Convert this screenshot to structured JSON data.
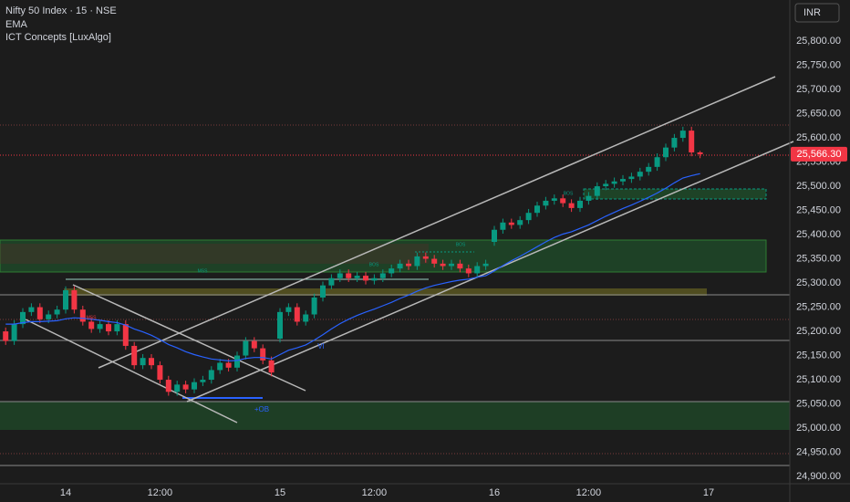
{
  "chart_data": {
    "type": "candlestick",
    "title": "Nifty 50 Index · 15 · NSE",
    "indicators": [
      "EMA",
      "ICT Concepts [LuxAlgo]"
    ],
    "currency": "INR",
    "up_color": "#089981",
    "down_color": "#f23645",
    "grid": false,
    "categories": [
      null,
      null,
      null,
      null,
      null,
      null,
      null,
      "14",
      null,
      null,
      null,
      null,
      null,
      null,
      null,
      null,
      null,
      null,
      "12:00",
      null,
      null,
      null,
      null,
      null,
      null,
      null,
      null,
      null,
      null,
      null,
      null,
      null,
      "15",
      null,
      null,
      null,
      null,
      null,
      null,
      null,
      null,
      null,
      null,
      "12:00",
      null,
      null,
      null,
      null,
      null,
      null,
      null,
      null,
      null,
      null,
      null,
      null,
      null,
      "16",
      null,
      null,
      null,
      null,
      null,
      null,
      null,
      null,
      null,
      null,
      "12:00",
      null,
      null,
      null,
      null,
      null,
      null,
      null,
      null,
      null,
      null,
      null,
      null,
      null,
      "17"
    ],
    "open": [
      25200,
      25180,
      25215,
      25240,
      25250,
      25225,
      25235,
      25245,
      25285,
      25245,
      25220,
      25205,
      25215,
      25200,
      25215,
      25170,
      25130,
      25145,
      25130,
      25100,
      25075,
      25090,
      25080,
      25095,
      25100,
      25120,
      25135,
      25125,
      25150,
      25180,
      25165,
      25140,
      25185,
      25240,
      25250,
      25220,
      25235,
      25270,
      25295,
      25310,
      25320,
      25310,
      25315,
      25305,
      25310,
      25320,
      25330,
      25340,
      25335,
      25355,
      25350,
      25340,
      25335,
      25340,
      25330,
      25320,
      25335,
      25385,
      25410,
      25425,
      25420,
      25430,
      25445,
      25460,
      25470,
      25475,
      25465,
      25455,
      25470,
      25480,
      25500,
      25505,
      25510,
      25515,
      25520,
      25530,
      25540,
      25560,
      25580,
      25600,
      25615,
      25570,
      null
    ],
    "high": [
      25208,
      25223,
      25248,
      25258,
      25258,
      25243,
      25253,
      25293,
      25293,
      25253,
      25228,
      25223,
      25223,
      25223,
      25223,
      25178,
      25153,
      25153,
      25138,
      25108,
      25098,
      25098,
      25103,
      25108,
      25128,
      25143,
      25143,
      25158,
      25188,
      25188,
      25173,
      25148,
      25248,
      25258,
      25258,
      25243,
      25278,
      25303,
      25318,
      25328,
      25328,
      25323,
      25323,
      25318,
      25328,
      25338,
      25348,
      25348,
      25363,
      25363,
      25358,
      25348,
      25348,
      25348,
      25338,
      25343,
      25348,
      25418,
      25433,
      25433,
      25438,
      25453,
      25468,
      25478,
      25483,
      25483,
      25473,
      25478,
      25488,
      25508,
      25513,
      25518,
      25523,
      25528,
      25538,
      25548,
      25568,
      25588,
      25608,
      25623,
      25623,
      25573,
      null
    ],
    "low": [
      25172,
      25172,
      25207,
      25232,
      25217,
      25217,
      25227,
      25237,
      25237,
      25212,
      25197,
      25197,
      25192,
      25192,
      25162,
      25122,
      25122,
      25122,
      25092,
      25067,
      25067,
      25072,
      25072,
      25087,
      25092,
      25112,
      25117,
      25117,
      25142,
      25157,
      25132,
      25107,
      25177,
      25232,
      25212,
      25212,
      25227,
      25262,
      25287,
      25302,
      25302,
      25302,
      25297,
      25297,
      25302,
      25312,
      25322,
      25327,
      25327,
      25342,
      25332,
      25327,
      25327,
      25322,
      25312,
      25312,
      25327,
      25377,
      25402,
      25412,
      25412,
      25422,
      25437,
      25452,
      25462,
      25457,
      25447,
      25447,
      25462,
      25472,
      25492,
      25497,
      25502,
      25507,
      25512,
      25522,
      25532,
      25552,
      25572,
      25592,
      25562,
      25558,
      null
    ],
    "close": [
      25180,
      25215,
      25240,
      25250,
      25225,
      25235,
      25245,
      25285,
      25245,
      25220,
      25205,
      25215,
      25200,
      25215,
      25170,
      25130,
      25145,
      25130,
      25100,
      25075,
      25090,
      25080,
      25095,
      25100,
      25120,
      25135,
      25125,
      25150,
      25180,
      25165,
      25140,
      25115,
      25240,
      25250,
      25220,
      25235,
      25270,
      25295,
      25310,
      25320,
      25310,
      25315,
      25305,
      25310,
      25320,
      25330,
      25340,
      25335,
      25355,
      25350,
      25340,
      25335,
      25340,
      25330,
      25320,
      25335,
      25340,
      25410,
      25425,
      25420,
      25430,
      25445,
      25460,
      25470,
      25475,
      25465,
      25455,
      25470,
      25480,
      25500,
      25505,
      25510,
      25515,
      25520,
      25530,
      25540,
      25560,
      25580,
      25600,
      25615,
      25570,
      25566.3,
      null
    ],
    "series": [
      {
        "name": "EMA",
        "color": "#2962ff",
        "values": [
          25215,
          25215,
          25218,
          25220,
          25220,
          25221,
          25222,
          25226,
          25228,
          25227,
          25225,
          25223,
          25220,
          25218,
          25213,
          25205,
          25199,
          25192,
          25183,
          25173,
          25166,
          25158,
          25152,
          25147,
          25143,
          25141,
          25139,
          25140,
          25144,
          25146,
          25146,
          25143,
          25152,
          25161,
          25166,
          25172,
          25182,
          25193,
          25205,
          25216,
          25225,
          25233,
          25240,
          25246,
          25253,
          25260,
          25268,
          25275,
          25283,
          25290,
          25295,
          25299,
          25303,
          25306,
          25308,
          25312,
          25315,
          25325,
          25336,
          25346,
          25355,
          25365,
          25375,
          25385,
          25394,
          25401,
          25406,
          25413,
          25420,
          25429,
          25438,
          25446,
          25454,
          25461,
          25469,
          25477,
          25486,
          25496,
          25507,
          25517,
          25522,
          25526,
          null
        ]
      }
    ],
    "last_price": {
      "value": 25566.3,
      "label": "25,566.30"
    },
    "ylim": [
      24885,
      25885
    ],
    "yticks": [
      {
        "value": 24900,
        "label": "24,900.00"
      },
      {
        "value": 24950,
        "label": "24,950.00"
      },
      {
        "value": 25000,
        "label": "25,000.00"
      },
      {
        "value": 25050,
        "label": "25,050.00"
      },
      {
        "value": 25100,
        "label": "25,100.00"
      },
      {
        "value": 25150,
        "label": "25,150.00"
      },
      {
        "value": 25200,
        "label": "25,200.00"
      },
      {
        "value": 25250,
        "label": "25,250.00"
      },
      {
        "value": 25300,
        "label": "25,300.00"
      },
      {
        "value": 25350,
        "label": "25,350.00"
      },
      {
        "value": 25400,
        "label": "25,400.00"
      },
      {
        "value": 25450,
        "label": "25,450.00"
      },
      {
        "value": 25500,
        "label": "25,500.00"
      },
      {
        "value": 25550,
        "label": "25,550.00"
      },
      {
        "value": 25600,
        "label": "25,600.00"
      },
      {
        "value": 25650,
        "label": "25,650.00"
      },
      {
        "value": 25700,
        "label": "25,700.00"
      },
      {
        "value": 25750,
        "label": "25,750.00"
      },
      {
        "value": 25800,
        "label": "25,800.00"
      }
    ],
    "annotations": [
      {
        "text": "MSS",
        "color": "#089981"
      },
      {
        "text": "MSS",
        "color": "#f23645"
      },
      {
        "text": "BOS",
        "color": "#089981"
      },
      {
        "text": "BOS",
        "color": "#089981"
      },
      {
        "text": "BOS",
        "color": "#089981"
      },
      {
        "text": "+OB",
        "color": "#2962ff"
      },
      {
        "text": "VI",
        "color": "#2962ff"
      }
    ]
  }
}
